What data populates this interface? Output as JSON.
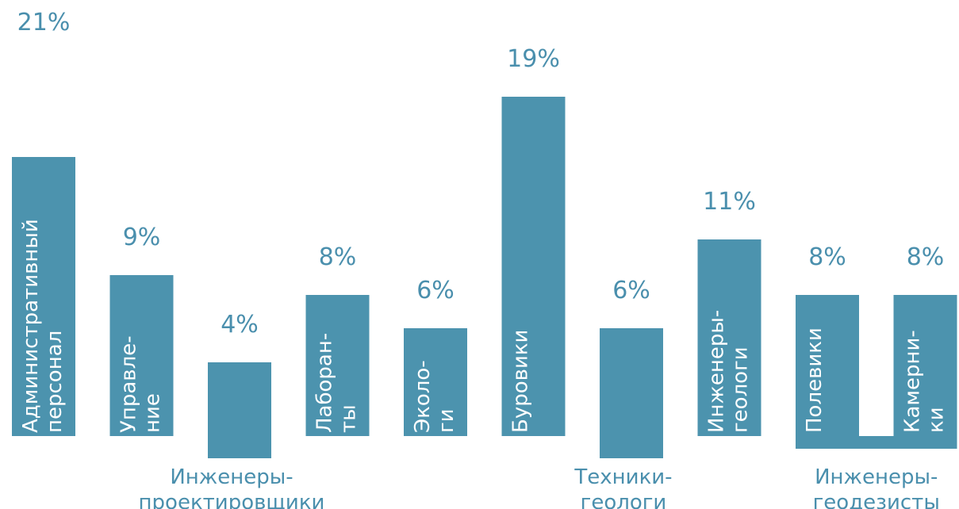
{
  "chart_data": {
    "type": "bar",
    "title": "",
    "xlabel": "",
    "ylabel": "",
    "ylim": [
      0,
      21
    ],
    "grid": false,
    "bar_color": "#4c93ae",
    "text_color": "#4a8fad",
    "categories": [
      {
        "name": "Административный персонал",
        "value": 21,
        "value_label": "21%",
        "label_lines": [
          "Административный",
          "персонал"
        ],
        "label_position": "inside"
      },
      {
        "name": "Управление",
        "value": 9,
        "value_label": "9%",
        "label_lines": [
          "Управле-",
          "ние"
        ],
        "label_position": "inside"
      },
      {
        "name": "Инженеры-проектировщики",
        "value": 4,
        "value_label": "4%",
        "label_lines": [
          "Инженеры-",
          "проектировщики"
        ],
        "label_position": "below"
      },
      {
        "name": "Лаборанты",
        "value": 8,
        "value_label": "8%",
        "label_lines": [
          "Лаборан-",
          "ты"
        ],
        "label_position": "inside"
      },
      {
        "name": "Экологи",
        "value": 6,
        "value_label": "6%",
        "label_lines": [
          "Эколо-",
          "ги"
        ],
        "label_position": "inside"
      },
      {
        "name": "Буровики",
        "value": 19,
        "value_label": "19%",
        "label_lines": [
          "Буровики"
        ],
        "label_position": "inside"
      },
      {
        "name": "Техники-геологи",
        "value": 6,
        "value_label": "6%",
        "label_lines": [
          "Техники-",
          "геологи"
        ],
        "label_position": "below"
      },
      {
        "name": "Инженеры-геологи",
        "value": 11,
        "value_label": "11%",
        "label_lines": [
          "Инженеры-",
          "геологи"
        ],
        "label_position": "inside"
      },
      {
        "name": "Полевики",
        "value": 8,
        "value_label": "8%",
        "label_lines": [
          "Полевики"
        ],
        "label_position": "inside"
      },
      {
        "name": "Камерники",
        "value": 8,
        "value_label": "8%",
        "label_lines": [
          "Камерни-",
          "ки"
        ],
        "label_position": "inside"
      }
    ],
    "group_labels": [
      {
        "name": "Инженеры-геодезисты",
        "label_lines": [
          "Инженеры-",
          "геодезисты"
        ],
        "members": [
          "Полевики",
          "Камерники"
        ]
      }
    ]
  }
}
